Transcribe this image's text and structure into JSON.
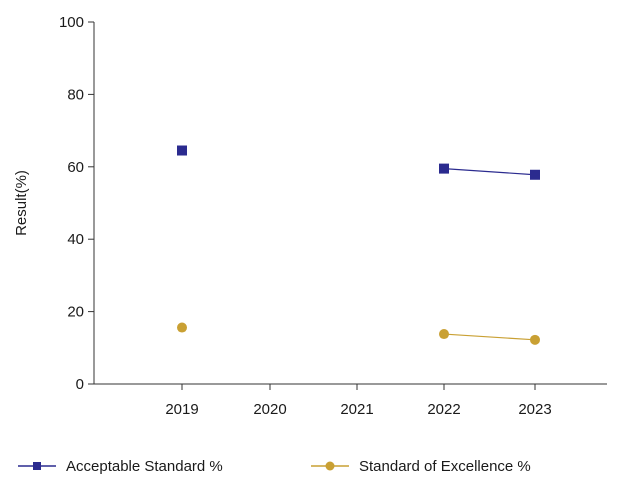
{
  "chart_data": {
    "type": "line",
    "categories": [
      "2019",
      "2020",
      "2021",
      "2022",
      "2023"
    ],
    "ylabel": "Result(%)",
    "xlabel": "",
    "ylim": [
      0,
      100
    ],
    "yticks": [
      0,
      20,
      40,
      60,
      80,
      100
    ],
    "grid": false,
    "legend_position": "bottom",
    "series": [
      {
        "name": "Acceptable Standard %",
        "marker": "square",
        "color": "#2b2b8f",
        "values": [
          64.5,
          null,
          null,
          59.5,
          57.8
        ]
      },
      {
        "name": "Standard of Excellence %",
        "marker": "circle",
        "color": "#c9a033",
        "values": [
          15.6,
          null,
          null,
          13.8,
          12.2
        ]
      }
    ]
  }
}
